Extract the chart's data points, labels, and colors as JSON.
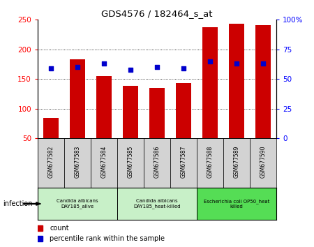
{
  "title": "GDS4576 / 182464_s_at",
  "samples": [
    "GSM677582",
    "GSM677583",
    "GSM677584",
    "GSM677585",
    "GSM677586",
    "GSM677587",
    "GSM677588",
    "GSM677589",
    "GSM677590"
  ],
  "counts": [
    84,
    183,
    155,
    139,
    135,
    143,
    238,
    243,
    241
  ],
  "percentiles": [
    59,
    60,
    63,
    58,
    60,
    59,
    65,
    63,
    63
  ],
  "ylim_left": [
    50,
    250
  ],
  "ylim_right": [
    0,
    100
  ],
  "yticks_left": [
    50,
    100,
    150,
    200,
    250
  ],
  "yticks_right": [
    0,
    25,
    50,
    75,
    100
  ],
  "ytick_labels_right": [
    "0",
    "25",
    "50",
    "75",
    "100%"
  ],
  "bar_color": "#cc0000",
  "dot_color": "#0000cc",
  "tick_area_color": "#d3d3d3",
  "group_face_colors": [
    "#c8f0c8",
    "#c8f0c8",
    "#55dd55"
  ],
  "groups": [
    {
      "label": "Candida albicans\nDAY185_alive",
      "start": 0,
      "end": 3
    },
    {
      "label": "Candida albicans\nDAY185_heat-killed",
      "start": 3,
      "end": 6
    },
    {
      "label": "Escherichia coli OP50_heat\nkilled",
      "start": 6,
      "end": 9
    }
  ],
  "infection_label": "infection",
  "legend_count": "count",
  "legend_pct": "percentile rank within the sample"
}
